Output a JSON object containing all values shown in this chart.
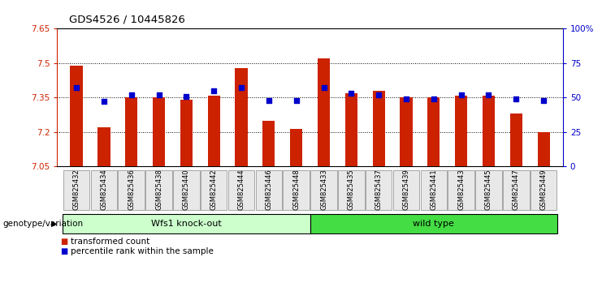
{
  "title": "GDS4526 / 10445826",
  "samples": [
    "GSM825432",
    "GSM825434",
    "GSM825436",
    "GSM825438",
    "GSM825440",
    "GSM825442",
    "GSM825444",
    "GSM825446",
    "GSM825448",
    "GSM825433",
    "GSM825435",
    "GSM825437",
    "GSM825439",
    "GSM825441",
    "GSM825443",
    "GSM825445",
    "GSM825447",
    "GSM825449"
  ],
  "transformed_counts": [
    7.49,
    7.22,
    7.35,
    7.35,
    7.34,
    7.36,
    7.48,
    7.25,
    7.215,
    7.52,
    7.37,
    7.38,
    7.35,
    7.35,
    7.36,
    7.36,
    7.28,
    7.2
  ],
  "percentile_ranks": [
    57,
    47,
    52,
    52,
    51,
    55,
    57,
    48,
    48,
    57,
    53,
    52,
    49,
    49,
    52,
    52,
    49,
    48
  ],
  "ymin": 7.05,
  "ymax": 7.65,
  "yticks": [
    7.05,
    7.2,
    7.35,
    7.5,
    7.65
  ],
  "right_yticks": [
    0,
    25,
    50,
    75,
    100
  ],
  "right_ylabels": [
    "0",
    "25",
    "50",
    "75",
    "100%"
  ],
  "groups": [
    {
      "label": "Wfs1 knock-out",
      "start": 0,
      "end": 9,
      "color": "#CCFFCC"
    },
    {
      "label": "wild type",
      "start": 9,
      "end": 18,
      "color": "#44DD44"
    }
  ],
  "bar_color": "#CC2200",
  "dot_color": "#0000CC",
  "bar_width": 0.45,
  "bg_color": "#FFFFFF",
  "plot_bg": "#FFFFFF",
  "group_label": "genotype/variation",
  "legend_items": [
    {
      "label": "transformed count",
      "color": "#CC2200"
    },
    {
      "label": "percentile rank within the sample",
      "color": "#0000CC"
    }
  ]
}
